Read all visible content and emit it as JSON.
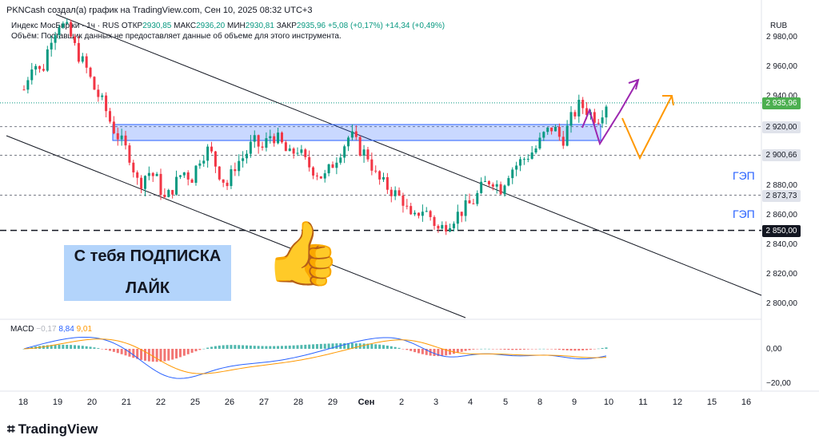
{
  "header": {
    "title": "PKNCash создал(а) график на TradingView.com, Сен 10, 2025 08:32 UTC+3",
    "symbol": "Индекс МосБиржи · 1ч · RUS",
    "open_label": "ОТКР",
    "open": "2930,85",
    "high_label": "МАКС",
    "high": "2936,20",
    "low_label": "МИН",
    "low": "2930,81",
    "close_label": "ЗАКР",
    "close": "2935,96",
    "change": "+5,08 (+0,17%)",
    "change2": "+14,34 (+0,49%)",
    "volume_note": "Объём: Поставщик данных не предоставляет данные об объеме для этого инструмента.",
    "currency": "RUB"
  },
  "price_axis": {
    "labels": [
      "2 980,00",
      "2 960,00",
      "2 940,00",
      "2 920,00",
      "2 880,00",
      "2 860,00",
      "2 840,00",
      "2 820,00",
      "2 800,00"
    ],
    "ticks": [
      2980,
      2960,
      2940,
      2920,
      2880,
      2860,
      2840,
      2820,
      2800
    ],
    "badges": [
      {
        "text": "2 935,96",
        "value": 2935.96,
        "bg": "#4caf50",
        "fg": "#ffffff"
      },
      {
        "text": "2 920,00",
        "value": 2920.0,
        "bg": "#e0e3eb",
        "fg": "#131722"
      },
      {
        "text": "2 900,66",
        "value": 2900.66,
        "bg": "#e0e3eb",
        "fg": "#131722"
      },
      {
        "text": "2 873,73",
        "value": 2873.73,
        "bg": "#e0e3eb",
        "fg": "#131722"
      },
      {
        "text": "2 850,00",
        "value": 2850.0,
        "bg": "#131722",
        "fg": "#ffffff"
      }
    ]
  },
  "x_axis": {
    "labels": [
      "18",
      "19",
      "20",
      "21",
      "22",
      "25",
      "26",
      "27",
      "28",
      "29",
      "Сен",
      "2",
      "3",
      "4",
      "5",
      "8",
      "9",
      "10",
      "11",
      "12",
      "15",
      "16"
    ]
  },
  "annotations": {
    "promo_line1": "С тебя ПОДПИСКА",
    "promo_line2": "ЛАЙК",
    "gap1": "ГЭП",
    "gap2": "ГЭП",
    "thumbs": "👍"
  },
  "macd": {
    "label": "MACD",
    "v1": "−0,17",
    "v2": "8,84",
    "v3": "9,01",
    "axis": [
      "0,00",
      "−20,00"
    ]
  },
  "branding": {
    "logo": "TradingView"
  },
  "chart_data": {
    "type": "candlestick",
    "title": "Индекс МосБиржи · 1ч · RUS",
    "ylim": [
      2790,
      3000
    ],
    "x": [
      "18",
      "19",
      "20",
      "21",
      "22",
      "25",
      "26",
      "27",
      "28",
      "29",
      "Сен",
      "2",
      "3",
      "4",
      "5",
      "8",
      "9",
      "10"
    ],
    "close_path": [
      2945,
      2965,
      2955,
      2980,
      2990,
      2985,
      2970,
      2960,
      2945,
      2935,
      2920,
      2910,
      2900,
      2880,
      2890,
      2885,
      2870,
      2880,
      2890,
      2885,
      2900,
      2905,
      2890,
      2880,
      2895,
      2900,
      2910,
      2905,
      2915,
      2910,
      2900,
      2905,
      2895,
      2890,
      2885,
      2895,
      2905,
      2915,
      2905,
      2900,
      2885,
      2880,
      2875,
      2870,
      2855,
      2865,
      2860,
      2850,
      2855,
      2860,
      2865,
      2870,
      2880,
      2885,
      2878,
      2890,
      2895,
      2900,
      2905,
      2915,
      2920,
      2910,
      2925,
      2935,
      2930,
      2925,
      2936
    ],
    "levels": [
      2920.0,
      2900.66,
      2873.73,
      2850.0
    ],
    "zone": [
      2917,
      2929
    ],
    "colors": {
      "up": "#089981",
      "down": "#f23645",
      "zone": "#2962ff",
      "purple": "#9c27b0",
      "orange": "#ff9800"
    }
  }
}
